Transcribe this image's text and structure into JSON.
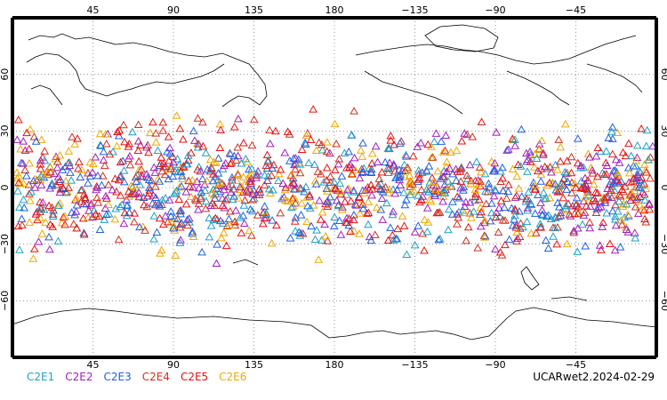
{
  "map": {
    "lon_labels_top": [
      "45",
      "90",
      "135",
      "180",
      "−135",
      "−90",
      "−45"
    ],
    "lon_labels_bottom": [
      "45",
      "90",
      "135",
      "180",
      "−135",
      "−90",
      "−45"
    ],
    "lat_labels_left": [
      "60",
      "30",
      "0",
      "−30",
      "−60"
    ],
    "lat_labels_right": [
      "60",
      "30",
      "0",
      "−30",
      "−60"
    ],
    "lon_range": [
      0,
      360
    ],
    "lat_range": [
      -90,
      90
    ],
    "grid_longitudes": [
      45,
      90,
      135,
      180,
      225,
      270,
      315
    ],
    "grid_latitudes": [
      60,
      30,
      0,
      -30,
      -60
    ],
    "grid": "dotted"
  },
  "legend": {
    "items": [
      {
        "label": "C2E1",
        "color": "#1fa0c8"
      },
      {
        "label": "C2E2",
        "color": "#a020c0"
      },
      {
        "label": "C2E3",
        "color": "#2060e0"
      },
      {
        "label": "C2E4",
        "color": "#d03020"
      },
      {
        "label": "C2E5",
        "color": "#e81010"
      },
      {
        "label": "C2E6",
        "color": "#f0a800"
      }
    ]
  },
  "dataset_label": "UCARwet2.2024-02-29",
  "chart_data": {
    "type": "scatter",
    "marker": "triangle-open",
    "series": [
      {
        "name": "C2E1",
        "color": "#1fa0c8",
        "lat_band": [
          -45,
          45
        ]
      },
      {
        "name": "C2E2",
        "color": "#a020c0",
        "lat_band": [
          -45,
          45
        ]
      },
      {
        "name": "C2E3",
        "color": "#2060e0",
        "lat_band": [
          -45,
          45
        ]
      },
      {
        "name": "C2E4",
        "color": "#d03020",
        "lat_band": [
          -45,
          45
        ]
      },
      {
        "name": "C2E5",
        "color": "#e81010",
        "lat_band": [
          -45,
          45
        ]
      },
      {
        "name": "C2E6",
        "color": "#f0a800",
        "lat_band": [
          -45,
          45
        ]
      }
    ],
    "x_range": [
      0,
      360
    ],
    "y_range": [
      -90,
      90
    ]
  }
}
